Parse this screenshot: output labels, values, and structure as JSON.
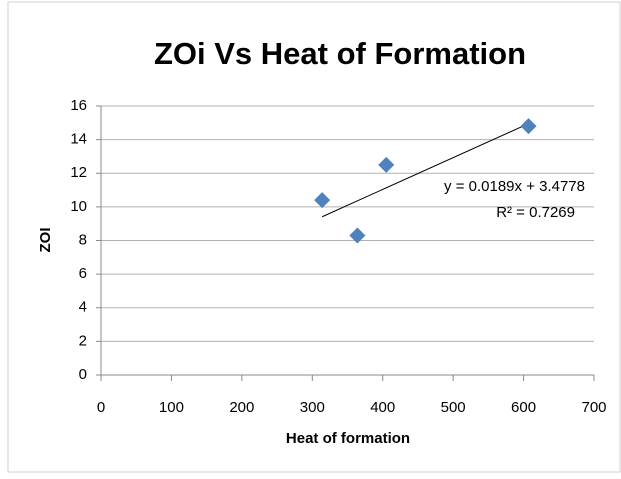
{
  "chart_data": {
    "type": "scatter",
    "title": "ZOi Vs Heat of Formation",
    "x_label": "Heat of formation",
    "y_label": "ZOI",
    "series": [
      {
        "color": "#4f81bd",
        "x": [
          314,
          364,
          405,
          607
        ],
        "values": [
          10.4,
          8.3,
          12.5,
          14.8
        ]
      }
    ],
    "xlim": [
      0,
      700
    ],
    "xticks": [
      0,
      100,
      200,
      300,
      400,
      500,
      600,
      700
    ],
    "ylim": [
      0,
      16
    ],
    "yticks": [
      0,
      2,
      4,
      6,
      8,
      10,
      12,
      14,
      16
    ],
    "grid": true,
    "trendline": {
      "slope": 0.0189,
      "intercept": 3.4778,
      "equation": "y = 0.0189x + 3.4778",
      "r_squared": "R² = 0.7269"
    }
  }
}
